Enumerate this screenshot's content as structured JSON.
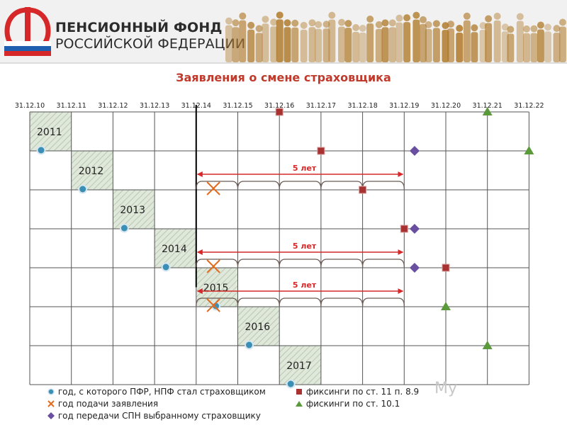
{
  "header": {
    "org_line1": "ПЕНСИОННЫЙ ФОНД",
    "org_line2": "РОССИЙСКОЙ ФЕДЕРАЦИИ",
    "logo_icon": "pfr-logo-icon",
    "flag_colors": [
      "#ffffff",
      "#1f5fb0",
      "#d62828"
    ],
    "logo_color": "#d62828"
  },
  "title": "Заявления о смене страховщика",
  "dates": [
    "31.12.10",
    "31.12.11",
    "31.12.12",
    "31.12.13",
    "31.12.14",
    "31.12.15",
    "31.12.16",
    "31.12.17",
    "31.12.18",
    "31.12.19",
    "31.12.20",
    "31.12.21",
    "31.12.22"
  ],
  "rows": [
    {
      "year": "2011",
      "shade_col": 0,
      "circle_col": 0
    },
    {
      "year": "2012",
      "shade_col": 1,
      "circle_col": 1
    },
    {
      "year": "2013",
      "shade_col": 2,
      "circle_col": 2
    },
    {
      "year": "2014",
      "shade_col": 3,
      "circle_col": 3
    },
    {
      "year": "2015",
      "shade_col": 4,
      "circle_col": 4.2
    },
    {
      "year": "2016",
      "shade_col": 5,
      "circle_col": 5
    },
    {
      "year": "2017",
      "shade_col": 6,
      "circle_col": 6
    }
  ],
  "marker_squares": [
    {
      "row": 0,
      "col": 6
    },
    {
      "row": 1,
      "col": 7
    },
    {
      "row": 2,
      "col": 8
    },
    {
      "row": 3,
      "col": 9
    },
    {
      "row": 4,
      "col": 10
    }
  ],
  "marker_triangles": [
    {
      "row": 0,
      "col": 11
    },
    {
      "row": 1,
      "col": 12
    },
    {
      "row": 5,
      "col": 10
    },
    {
      "row": 6,
      "col": 11
    }
  ],
  "marker_diamonds": [
    {
      "row": 1,
      "col": 9.25
    },
    {
      "row": 3,
      "col": 9.25
    },
    {
      "row": 4,
      "col": 9.25
    }
  ],
  "marker_crosses": [
    {
      "row": 1,
      "col": 4.5
    },
    {
      "row": 3,
      "col": 4.5
    },
    {
      "row": 4,
      "col": 4.5
    }
  ],
  "periods": [
    {
      "row": 1,
      "label": "5 лет",
      "from_col": 4,
      "to_col": 9
    },
    {
      "row": 3,
      "label": "5 лет",
      "from_col": 4,
      "to_col": 9
    },
    {
      "row": 4,
      "label": "5 лет",
      "from_col": 4,
      "to_col": 9
    }
  ],
  "cutoff_col": 4,
  "legend": {
    "circle": "год, с которого ПФР, НПФ стал страховщиком",
    "cross": "год подачи заявления",
    "diamond": "год передачи СПН выбранному страховщику",
    "square": "фиксинги по ст. 11 п. 8.9",
    "triangle": "фискинги по ст. 10.1"
  },
  "colors": {
    "title": "#c0392b",
    "arrow": "#d62828",
    "cross": "#e36b1e",
    "circle": "#3b8fb5",
    "square": "#a83232",
    "triangle": "#5a9a3a",
    "diamond": "#6a4fa0",
    "grid": "#555555",
    "shade": "#dfe8da"
  },
  "watermark": "My"
}
